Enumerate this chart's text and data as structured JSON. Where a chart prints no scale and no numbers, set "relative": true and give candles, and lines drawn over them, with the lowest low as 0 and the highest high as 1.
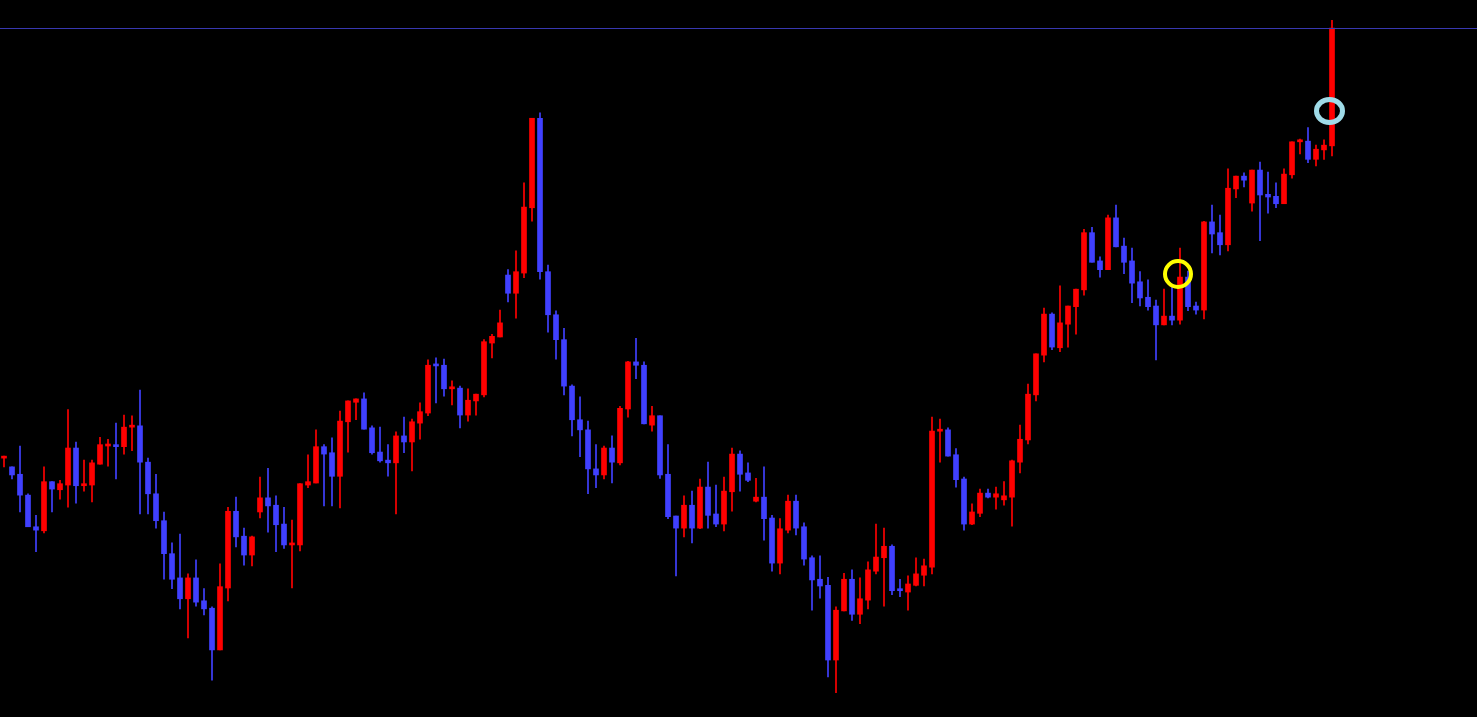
{
  "chart_data": {
    "type": "candlestick",
    "relative": true,
    "categories": [
      null,
      null,
      null,
      null,
      null,
      null,
      null,
      null,
      null,
      null,
      null,
      null,
      null,
      null,
      null,
      null,
      null,
      null,
      null,
      null,
      null,
      null,
      null,
      null,
      null,
      null,
      null,
      null,
      null,
      null,
      null,
      null,
      null,
      null,
      null,
      null,
      null,
      null,
      null,
      null,
      null,
      null,
      null,
      null,
      null,
      null,
      null,
      null,
      null,
      null,
      null,
      null,
      null,
      null,
      null,
      null,
      null,
      null,
      null,
      null,
      null,
      null,
      null,
      null,
      null,
      null,
      null,
      null,
      null,
      null,
      null,
      null,
      null,
      null,
      null,
      null,
      null,
      null,
      null,
      null,
      null,
      null,
      null,
      null,
      null,
      null,
      null,
      null,
      null,
      null,
      null,
      null,
      null,
      null,
      null,
      null,
      null,
      null,
      null,
      null,
      null,
      null,
      null,
      null,
      null,
      null,
      null,
      null,
      null,
      null,
      null,
      null,
      null,
      null,
      null,
      null,
      null,
      null,
      null,
      null,
      null,
      null,
      null,
      null,
      null,
      null,
      null,
      null,
      null,
      null,
      null,
      null,
      null,
      null,
      null,
      null,
      null,
      null,
      null,
      null,
      null,
      null,
      null,
      null,
      null,
      null,
      null,
      null,
      null,
      null,
      null,
      null,
      null,
      null,
      null,
      null,
      null,
      null,
      null,
      null,
      null,
      null,
      null,
      null,
      null,
      null,
      null
    ],
    "ohlc": [
      [
        0.349,
        0.352,
        0.336,
        0.35
      ],
      [
        0.336,
        0.336,
        0.318,
        0.324
      ],
      [
        0.325,
        0.367,
        0.269,
        0.294
      ],
      [
        0.294,
        0.296,
        0.247,
        0.247
      ],
      [
        0.247,
        0.264,
        0.21,
        0.242
      ],
      [
        0.241,
        0.336,
        0.238,
        0.314
      ],
      [
        0.314,
        0.314,
        0.269,
        0.303
      ],
      [
        0.302,
        0.316,
        0.288,
        0.311
      ],
      [
        0.309,
        0.421,
        0.276,
        0.364
      ],
      [
        0.364,
        0.373,
        0.282,
        0.308
      ],
      [
        0.308,
        0.346,
        0.3,
        0.311
      ],
      [
        0.309,
        0.346,
        0.284,
        0.342
      ],
      [
        0.34,
        0.38,
        0.34,
        0.369
      ],
      [
        0.367,
        0.377,
        0.337,
        0.369
      ],
      [
        0.369,
        0.401,
        0.318,
        0.366
      ],
      [
        0.366,
        0.413,
        0.355,
        0.395
      ],
      [
        0.395,
        0.412,
        0.36,
        0.397
      ],
      [
        0.397,
        0.45,
        0.266,
        0.343
      ],
      [
        0.343,
        0.349,
        0.266,
        0.296
      ],
      [
        0.296,
        0.325,
        0.245,
        0.256
      ],
      [
        0.256,
        0.269,
        0.169,
        0.207
      ],
      [
        0.207,
        0.223,
        0.155,
        0.169
      ],
      [
        0.171,
        0.236,
        0.125,
        0.14
      ],
      [
        0.14,
        0.177,
        0.082,
        0.171
      ],
      [
        0.171,
        0.198,
        0.129,
        0.135
      ],
      [
        0.137,
        0.155,
        0.116,
        0.125
      ],
      [
        0.126,
        0.128,
        0.019,
        0.064
      ],
      [
        0.064,
        0.192,
        0.064,
        0.158
      ],
      [
        0.156,
        0.276,
        0.137,
        0.27
      ],
      [
        0.27,
        0.291,
        0.217,
        0.232
      ],
      [
        0.233,
        0.245,
        0.19,
        0.205
      ],
      [
        0.205,
        0.233,
        0.189,
        0.232
      ],
      [
        0.269,
        0.321,
        0.26,
        0.29
      ],
      [
        0.29,
        0.334,
        0.239,
        0.278
      ],
      [
        0.279,
        0.293,
        0.21,
        0.25
      ],
      [
        0.251,
        0.276,
        0.215,
        0.22
      ],
      [
        0.22,
        0.257,
        0.156,
        0.221
      ],
      [
        0.22,
        0.311,
        0.211,
        0.311
      ],
      [
        0.309,
        0.354,
        0.305,
        0.314
      ],
      [
        0.312,
        0.391,
        0.312,
        0.366
      ],
      [
        0.366,
        0.369,
        0.278,
        0.355
      ],
      [
        0.357,
        0.379,
        0.278,
        0.322
      ],
      [
        0.322,
        0.419,
        0.275,
        0.404
      ],
      [
        0.403,
        0.434,
        0.358,
        0.434
      ],
      [
        0.432,
        0.437,
        0.406,
        0.437
      ],
      [
        0.437,
        0.446,
        0.392,
        0.392
      ],
      [
        0.394,
        0.397,
        0.355,
        0.357
      ],
      [
        0.358,
        0.395,
        0.343,
        0.345
      ],
      [
        0.346,
        0.369,
        0.322,
        0.342
      ],
      [
        0.342,
        0.388,
        0.266,
        0.382
      ],
      [
        0.382,
        0.41,
        0.357,
        0.373
      ],
      [
        0.373,
        0.407,
        0.33,
        0.403
      ],
      [
        0.401,
        0.431,
        0.377,
        0.418
      ],
      [
        0.416,
        0.495,
        0.412,
        0.487
      ],
      [
        0.487,
        0.498,
        0.431,
        0.486
      ],
      [
        0.487,
        0.496,
        0.441,
        0.452
      ],
      [
        0.452,
        0.464,
        0.428,
        0.453
      ],
      [
        0.453,
        0.456,
        0.394,
        0.413
      ],
      [
        0.413,
        0.452,
        0.404,
        0.435
      ],
      [
        0.434,
        0.444,
        0.413,
        0.444
      ],
      [
        0.443,
        0.525,
        0.44,
        0.522
      ],
      [
        0.52,
        0.533,
        0.498,
        0.53
      ],
      [
        0.529,
        0.569,
        0.529,
        0.55
      ],
      [
        0.621,
        0.629,
        0.581,
        0.594
      ],
      [
        0.594,
        0.657,
        0.557,
        0.626
      ],
      [
        0.624,
        0.758,
        0.617,
        0.722
      ],
      [
        0.721,
        0.854,
        0.701,
        0.854
      ],
      [
        0.854,
        0.862,
        0.615,
        0.626
      ],
      [
        0.626,
        0.636,
        0.536,
        0.562
      ],
      [
        0.562,
        0.568,
        0.496,
        0.525
      ],
      [
        0.525,
        0.542,
        0.443,
        0.456
      ],
      [
        0.456,
        0.458,
        0.382,
        0.406
      ],
      [
        0.406,
        0.44,
        0.351,
        0.391
      ],
      [
        0.391,
        0.404,
        0.296,
        0.333
      ],
      [
        0.333,
        0.369,
        0.305,
        0.324
      ],
      [
        0.324,
        0.367,
        0.318,
        0.364
      ],
      [
        0.364,
        0.382,
        0.312,
        0.343
      ],
      [
        0.342,
        0.426,
        0.339,
        0.423
      ],
      [
        0.422,
        0.493,
        0.41,
        0.492
      ],
      [
        0.492,
        0.527,
        0.467,
        0.487
      ],
      [
        0.487,
        0.492,
        0.4,
        0.4
      ],
      [
        0.398,
        0.426,
        0.389,
        0.412
      ],
      [
        0.412,
        0.412,
        0.319,
        0.324
      ],
      [
        0.325,
        0.369,
        0.259,
        0.262
      ],
      [
        0.263,
        0.263,
        0.174,
        0.245
      ],
      [
        0.245,
        0.293,
        0.232,
        0.279
      ],
      [
        0.279,
        0.3,
        0.223,
        0.245
      ],
      [
        0.245,
        0.318,
        0.244,
        0.306
      ],
      [
        0.306,
        0.343,
        0.245,
        0.264
      ],
      [
        0.266,
        0.309,
        0.247,
        0.251
      ],
      [
        0.251,
        0.321,
        0.241,
        0.3
      ],
      [
        0.299,
        0.364,
        0.27,
        0.355
      ],
      [
        0.355,
        0.36,
        0.3,
        0.325
      ],
      [
        0.327,
        0.342,
        0.314,
        0.316
      ],
      [
        0.285,
        0.319,
        0.284,
        0.291
      ],
      [
        0.291,
        0.336,
        0.227,
        0.259
      ],
      [
        0.26,
        0.264,
        0.181,
        0.193
      ],
      [
        0.193,
        0.259,
        0.177,
        0.244
      ],
      [
        0.242,
        0.294,
        0.238,
        0.285
      ],
      [
        0.285,
        0.294,
        0.235,
        0.245
      ],
      [
        0.247,
        0.253,
        0.19,
        0.199
      ],
      [
        0.201,
        0.204,
        0.123,
        0.168
      ],
      [
        0.169,
        0.204,
        0.141,
        0.159
      ],
      [
        0.16,
        0.172,
        0.024,
        0.049
      ],
      [
        0.049,
        0.128,
        0,
        0.123
      ],
      [
        0.122,
        0.178,
        0.122,
        0.169
      ],
      [
        0.169,
        0.183,
        0.108,
        0.117
      ],
      [
        0.117,
        0.171,
        0.103,
        0.14
      ],
      [
        0.138,
        0.195,
        0.125,
        0.183
      ],
      [
        0.181,
        0.251,
        0.177,
        0.202
      ],
      [
        0.201,
        0.245,
        0.129,
        0.218
      ],
      [
        0.218,
        0.22,
        0.146,
        0.152
      ],
      [
        0.153,
        0.169,
        0.143,
        0.152
      ],
      [
        0.15,
        0.174,
        0.123,
        0.162
      ],
      [
        0.16,
        0.201,
        0.159,
        0.177
      ],
      [
        0.175,
        0.199,
        0.159,
        0.189
      ],
      [
        0.187,
        0.41,
        0.177,
        0.389
      ],
      [
        0.389,
        0.407,
        0.343,
        0.391
      ],
      [
        0.391,
        0.394,
        0.352,
        0.352
      ],
      [
        0.354,
        0.363,
        0.306,
        0.317
      ],
      [
        0.318,
        0.321,
        0.242,
        0.251
      ],
      [
        0.251,
        0.281,
        0.25,
        0.269
      ],
      [
        0.267,
        0.303,
        0.262,
        0.297
      ],
      [
        0.297,
        0.303,
        0.29,
        0.291
      ],
      [
        0.291,
        0.306,
        0.273,
        0.296
      ],
      [
        0.287,
        0.314,
        0.279,
        0.293
      ],
      [
        0.291,
        0.346,
        0.248,
        0.345
      ],
      [
        0.343,
        0.398,
        0.327,
        0.377
      ],
      [
        0.376,
        0.459,
        0.37,
        0.444
      ],
      [
        0.443,
        0.504,
        0.434,
        0.504
      ],
      [
        0.502,
        0.572,
        0.492,
        0.563
      ],
      [
        0.563,
        0.565,
        0.51,
        0.514
      ],
      [
        0.513,
        0.605,
        0.507,
        0.55
      ],
      [
        0.548,
        0.575,
        0.514,
        0.575
      ],
      [
        0.574,
        0.6,
        0.533,
        0.6
      ],
      [
        0.599,
        0.689,
        0.591,
        0.684
      ],
      [
        0.684,
        0.692,
        0.64,
        0.64
      ],
      [
        0.642,
        0.648,
        0.618,
        0.629
      ],
      [
        0.629,
        0.71,
        0.629,
        0.706
      ],
      [
        0.706,
        0.725,
        0.663,
        0.663
      ],
      [
        0.664,
        0.676,
        0.623,
        0.64
      ],
      [
        0.642,
        0.661,
        0.58,
        0.609
      ],
      [
        0.611,
        0.626,
        0.575,
        0.587
      ],
      [
        0.588,
        0.614,
        0.569,
        0.574
      ],
      [
        0.575,
        0.584,
        0.495,
        0.547
      ],
      [
        0.547,
        0.6,
        0.547,
        0.56
      ],
      [
        0.56,
        0.603,
        0.547,
        0.554
      ],
      [
        0.554,
        0.661,
        0.548,
        0.618
      ],
      [
        0.618,
        0.627,
        0.568,
        0.574
      ],
      [
        0.575,
        0.581,
        0.563,
        0.569
      ],
      [
        0.569,
        0.701,
        0.556,
        0.7
      ],
      [
        0.7,
        0.725,
        0.654,
        0.682
      ],
      [
        0.684,
        0.71,
        0.651,
        0.666
      ],
      [
        0.666,
        0.779,
        0.657,
        0.75
      ],
      [
        0.749,
        0.768,
        0.736,
        0.768
      ],
      [
        0.768,
        0.773,
        0.752,
        0.762
      ],
      [
        0.728,
        0.777,
        0.716,
        0.777
      ],
      [
        0.777,
        0.789,
        0.672,
        0.74
      ],
      [
        0.741,
        0.774,
        0.713,
        0.737
      ],
      [
        0.738,
        0.758,
        0.721,
        0.727
      ],
      [
        0.727,
        0.779,
        0.727,
        0.771
      ],
      [
        0.77,
        0.819,
        0.765,
        0.819
      ],
      [
        0.819,
        0.823,
        0.801,
        0.82
      ],
      [
        0.82,
        0.84,
        0.788,
        0.793
      ],
      [
        0.793,
        0.814,
        0.783,
        0.808
      ],
      [
        0.807,
        0.822,
        0.793,
        0.814
      ],
      [
        0.813,
        1,
        0.798,
        0.988
      ]
    ],
    "colors": [
      "#ff0000",
      "#4040ff",
      "#4040ff",
      "#4040ff",
      "#4040ff",
      "#ff0000",
      "#4040ff",
      "#ff0000",
      "#ff0000",
      "#4040ff",
      "#ff0000",
      "#ff0000",
      "#ff0000",
      "#ff0000",
      "#4040ff",
      "#ff0000",
      "#ff0000",
      "#4040ff",
      "#4040ff",
      "#4040ff",
      "#4040ff",
      "#4040ff",
      "#4040ff",
      "#ff0000",
      "#4040ff",
      "#4040ff",
      "#4040ff",
      "#ff0000",
      "#ff0000",
      "#4040ff",
      "#4040ff",
      "#ff0000",
      "#ff0000",
      "#4040ff",
      "#4040ff",
      "#4040ff",
      "#ff0000",
      "#ff0000",
      "#ff0000",
      "#ff0000",
      "#4040ff",
      "#4040ff",
      "#ff0000",
      "#ff0000",
      "#ff0000",
      "#4040ff",
      "#4040ff",
      "#4040ff",
      "#4040ff",
      "#ff0000",
      "#4040ff",
      "#ff0000",
      "#ff0000",
      "#ff0000",
      "#4040ff",
      "#4040ff",
      "#ff0000",
      "#4040ff",
      "#ff0000",
      "#ff0000",
      "#ff0000",
      "#ff0000",
      "#ff0000",
      "#4040ff",
      "#ff0000",
      "#ff0000",
      "#ff0000",
      "#4040ff",
      "#4040ff",
      "#4040ff",
      "#4040ff",
      "#4040ff",
      "#4040ff",
      "#4040ff",
      "#4040ff",
      "#ff0000",
      "#4040ff",
      "#ff0000",
      "#ff0000",
      "#4040ff",
      "#4040ff",
      "#ff0000",
      "#4040ff",
      "#4040ff",
      "#4040ff",
      "#ff0000",
      "#4040ff",
      "#ff0000",
      "#4040ff",
      "#4040ff",
      "#ff0000",
      "#ff0000",
      "#4040ff",
      "#4040ff",
      "#ff0000",
      "#4040ff",
      "#4040ff",
      "#ff0000",
      "#ff0000",
      "#4040ff",
      "#4040ff",
      "#4040ff",
      "#4040ff",
      "#4040ff",
      "#ff0000",
      "#ff0000",
      "#4040ff",
      "#ff0000",
      "#ff0000",
      "#ff0000",
      "#ff0000",
      "#4040ff",
      "#4040ff",
      "#ff0000",
      "#ff0000",
      "#ff0000",
      "#ff0000",
      "#ff0000",
      "#4040ff",
      "#4040ff",
      "#4040ff",
      "#ff0000",
      "#ff0000",
      "#4040ff",
      "#ff0000",
      "#ff0000",
      "#ff0000",
      "#ff0000",
      "#ff0000",
      "#ff0000",
      "#ff0000",
      "#4040ff",
      "#ff0000",
      "#ff0000",
      "#ff0000",
      "#ff0000",
      "#4040ff",
      "#4040ff",
      "#ff0000",
      "#4040ff",
      "#4040ff",
      "#4040ff",
      "#4040ff",
      "#4040ff",
      "#4040ff",
      "#ff0000",
      "#4040ff",
      "#ff0000",
      "#4040ff",
      "#4040ff",
      "#ff0000",
      "#4040ff",
      "#4040ff",
      "#ff0000",
      "#ff0000",
      "#4040ff",
      "#ff0000",
      "#4040ff",
      "#4040ff",
      "#4040ff",
      "#ff0000",
      "#ff0000",
      "#ff0000",
      "#4040ff",
      "#ff0000",
      "#ff0000",
      "#ff0000"
    ],
    "ref_lines": [
      {
        "axis": "y",
        "value": 0.988,
        "color": "#3838b0"
      }
    ]
  }
}
